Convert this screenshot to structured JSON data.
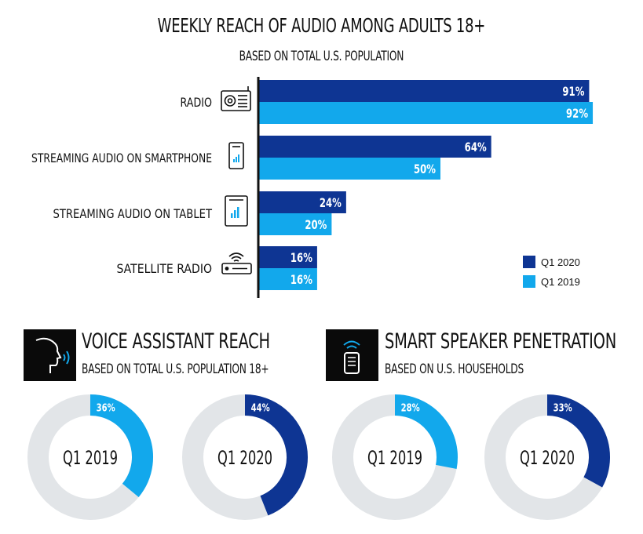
{
  "colors": {
    "q1_2020": "#0e3593",
    "q1_2019": "#12a8ec",
    "ring_bg": "#e2e5e8",
    "ink": "#111111"
  },
  "header": {
    "title": "WEEKLY REACH OF AUDIO AMONG ADULTS 18+",
    "subtitle": "BASED ON TOTAL U.S. POPULATION"
  },
  "chart_data": [
    {
      "type": "bar",
      "orientation": "horizontal",
      "title": "WEEKLY REACH OF AUDIO AMONG ADULTS 18+",
      "subtitle": "BASED ON TOTAL U.S. POPULATION",
      "categories": [
        "RADIO",
        "STREAMING AUDIO ON SMARTPHONE",
        "STREAMING AUDIO ON TABLET",
        "SATELLITE RADIO"
      ],
      "category_icons": [
        "radio-icon",
        "smartphone-icon",
        "tablet-icon",
        "satellite-radio-icon"
      ],
      "series": [
        {
          "name": "Q1 2020",
          "values": [
            91,
            64,
            24,
            16
          ],
          "labels": [
            "91%",
            "64%",
            "24%",
            "16%"
          ],
          "color": "#0e3593"
        },
        {
          "name": "Q1 2019",
          "values": [
            92,
            50,
            20,
            16
          ],
          "labels": [
            "92%",
            "50%",
            "20%",
            "16%"
          ],
          "color": "#12a8ec"
        }
      ],
      "xlim": [
        0,
        100
      ],
      "legend": "bottom-right",
      "grid": false
    },
    {
      "type": "pie",
      "variant": "donut",
      "title": "VOICE ASSISTANT REACH",
      "subtitle": "BASED ON TOTAL U.S. POPULATION 18+",
      "icon": "voice-assistant-icon",
      "donuts": [
        {
          "label": "Q1 2019",
          "display_label": "Q1 2019",
          "value": 36,
          "value_label": "36%",
          "color": "#12a8ec"
        },
        {
          "label": "Q1 2020",
          "display_label": "Q1 2020",
          "value": 44,
          "value_label": "44%",
          "color": "#0e3593"
        }
      ]
    },
    {
      "type": "pie",
      "variant": "donut",
      "title": "SMART SPEAKER PENETRATION",
      "subtitle": "BASED ON U.S. HOUSEHOLDS",
      "icon": "smart-speaker-icon",
      "donuts": [
        {
          "label": "Q1 2019",
          "display_label": "Q1 2019",
          "value": 28,
          "value_label": "28%",
          "color": "#12a8ec"
        },
        {
          "label": "Q1 2020",
          "display_label": "Q1 2020",
          "value": 33,
          "value_label": "33%",
          "color": "#0e3593"
        }
      ]
    }
  ]
}
